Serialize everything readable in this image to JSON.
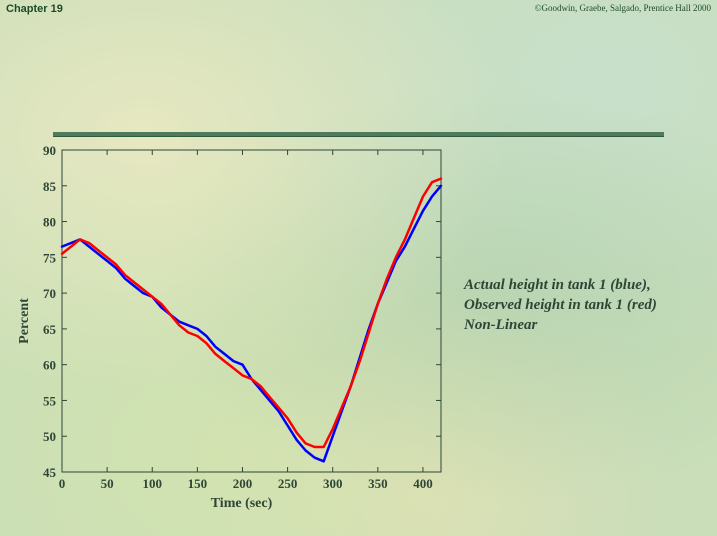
{
  "header": {
    "chapter": "Chapter 19",
    "copyright": "©Goodwin, Graebe, Salgado, Prentice Hall 2000"
  },
  "caption": {
    "line1": "Actual height in tank 1 (blue),",
    "line2": "Observed height in tank 1 (red)",
    "line3": "Non-Linear"
  },
  "chart_data": {
    "type": "line",
    "xlabel": "Time (sec)",
    "ylabel": "Percent",
    "xlim": [
      0,
      420
    ],
    "ylim": [
      45,
      90
    ],
    "xticks": [
      0,
      50,
      100,
      150,
      200,
      250,
      300,
      350,
      400
    ],
    "yticks": [
      45,
      50,
      55,
      60,
      65,
      70,
      75,
      80,
      85,
      90
    ],
    "grid": false,
    "series": [
      {
        "color": "#0000ff",
        "x": [
          0,
          10,
          20,
          30,
          40,
          50,
          60,
          70,
          80,
          90,
          100,
          110,
          120,
          130,
          140,
          150,
          160,
          170,
          180,
          190,
          200,
          210,
          220,
          230,
          240,
          250,
          260,
          270,
          280,
          290,
          300,
          310,
          320,
          330,
          340,
          350,
          360,
          370,
          380,
          390,
          400,
          410,
          420
        ],
        "y": [
          76.5,
          77,
          77.5,
          76.5,
          75.5,
          74.5,
          73.5,
          72,
          71,
          70,
          69.5,
          68,
          67,
          66,
          65.5,
          65,
          64,
          62.5,
          61.5,
          60.5,
          60,
          58,
          56.5,
          55,
          53.5,
          51.5,
          49.5,
          48,
          47,
          46.5,
          50,
          53.5,
          57,
          61,
          65,
          68.5,
          71.5,
          74.5,
          76.5,
          79,
          81.5,
          83.5,
          85
        ]
      },
      {
        "color": "#ff0000",
        "x": [
          0,
          10,
          20,
          30,
          40,
          50,
          60,
          70,
          80,
          90,
          100,
          110,
          120,
          130,
          140,
          150,
          160,
          170,
          180,
          190,
          200,
          210,
          220,
          230,
          240,
          250,
          260,
          270,
          280,
          290,
          300,
          310,
          320,
          330,
          340,
          350,
          360,
          370,
          380,
          390,
          400,
          410,
          420
        ],
        "y": [
          75.5,
          76.5,
          77.5,
          77,
          76,
          75,
          74,
          72.5,
          71.5,
          70.5,
          69.5,
          68.5,
          67,
          65.5,
          64.5,
          64,
          63,
          61.5,
          60.5,
          59.5,
          58.5,
          58,
          57,
          55.5,
          54,
          52.5,
          50.5,
          49,
          48.5,
          48.5,
          51,
          54,
          57,
          60.5,
          64.5,
          68.5,
          72,
          75,
          77.5,
          80.5,
          83.5,
          85.5,
          86
        ]
      }
    ]
  }
}
